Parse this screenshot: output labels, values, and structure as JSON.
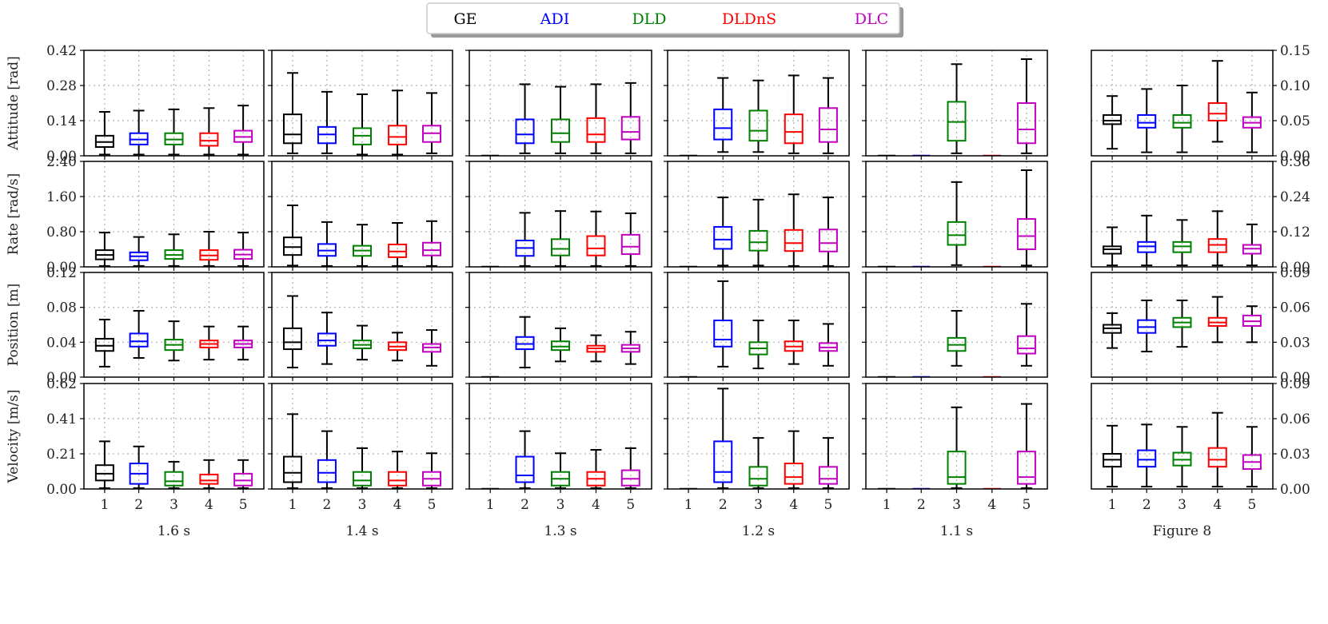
{
  "chart_data": {
    "type": "boxplot-grid",
    "legend": [
      {
        "label": "GE",
        "color": "#000000"
      },
      {
        "label": "ADI",
        "color": "#0000ff"
      },
      {
        "label": "DLD",
        "color": "#008000"
      },
      {
        "label": "DLDnS",
        "color": "#ff0000"
      },
      {
        "label": "DLC",
        "color": "#bf00bf"
      }
    ],
    "categories": [
      "1",
      "2",
      "3",
      "4",
      "5"
    ],
    "columns": [
      "1.6 s",
      "1.4 s",
      "1.3 s",
      "1.2 s",
      "1.1 s",
      "Figure 8"
    ],
    "rows": [
      {
        "ylabel": "Attitude [rad]",
        "left": {
          "ylim": [
            0,
            0.42
          ],
          "ticks": [
            "0.00",
            "0.14",
            "0.28",
            "0.42"
          ]
        },
        "right": {
          "ylim": [
            0,
            0.15
          ],
          "ticks": [
            "0.00",
            "0.05",
            "0.10",
            "0.15"
          ]
        }
      },
      {
        "ylabel": "Rate [rad/s]",
        "left": {
          "ylim": [
            0,
            2.4
          ],
          "ticks": [
            "0.00",
            "0.80",
            "1.60",
            "2.40"
          ]
        },
        "right": {
          "ylim": [
            0,
            0.36
          ],
          "ticks": [
            "0.00",
            "0.12",
            "0.24",
            "0.36"
          ]
        }
      },
      {
        "ylabel": "Position [m]",
        "left": {
          "ylim": [
            0,
            0.12
          ],
          "ticks": [
            "0.00",
            "0.04",
            "0.08",
            "0.12"
          ]
        },
        "right": {
          "ylim": [
            0,
            0.09
          ],
          "ticks": [
            "0.00",
            "0.03",
            "0.06",
            "0.09"
          ]
        }
      },
      {
        "ylabel": "Velocity [m/s]",
        "left": {
          "ylim": [
            0,
            0.62
          ],
          "ticks": [
            "0.00",
            "0.21",
            "0.41",
            "0.62"
          ]
        },
        "right": {
          "ylim": [
            0,
            0.09
          ],
          "ticks": [
            "0.00",
            "0.03",
            "0.06",
            "0.09"
          ]
        }
      }
    ],
    "boxes": [
      [
        [
          [
            0.005,
            0.035,
            0.055,
            0.08,
            0.175
          ],
          [
            0.005,
            0.045,
            0.065,
            0.09,
            0.18
          ],
          [
            0.005,
            0.045,
            0.065,
            0.09,
            0.185
          ],
          [
            0.005,
            0.04,
            0.06,
            0.09,
            0.19
          ],
          [
            0.005,
            0.055,
            0.075,
            0.1,
            0.2
          ]
        ],
        [
          [
            0.01,
            0.05,
            0.085,
            0.165,
            0.33
          ],
          [
            0.01,
            0.05,
            0.085,
            0.115,
            0.255
          ],
          [
            0.005,
            0.045,
            0.08,
            0.11,
            0.245
          ],
          [
            0.005,
            0.045,
            0.075,
            0.12,
            0.26
          ],
          [
            0.01,
            0.055,
            0.09,
            0.12,
            0.25
          ]
        ],
        [
          null,
          [
            0.01,
            0.05,
            0.085,
            0.145,
            0.285
          ],
          [
            0.01,
            0.055,
            0.09,
            0.145,
            0.275
          ],
          [
            0.01,
            0.055,
            0.085,
            0.15,
            0.285
          ],
          [
            0.01,
            0.065,
            0.095,
            0.155,
            0.29
          ]
        ],
        [
          null,
          [
            0.015,
            0.065,
            0.11,
            0.185,
            0.31
          ],
          [
            0.015,
            0.06,
            0.1,
            0.18,
            0.3
          ],
          [
            0.01,
            0.05,
            0.095,
            0.165,
            0.32
          ],
          [
            0.01,
            0.055,
            0.105,
            0.19,
            0.31
          ]
        ],
        [
          null,
          null,
          [
            0.01,
            0.06,
            0.135,
            0.215,
            0.365
          ],
          null,
          [
            0.01,
            0.05,
            0.105,
            0.21,
            0.385
          ]
        ],
        [
          [
            0.01,
            0.045,
            0.05,
            0.058,
            0.085
          ],
          [
            0.005,
            0.04,
            0.047,
            0.058,
            0.095
          ],
          [
            0.005,
            0.04,
            0.047,
            0.058,
            0.1
          ],
          [
            0.02,
            0.05,
            0.06,
            0.075,
            0.135
          ],
          [
            0.005,
            0.04,
            0.047,
            0.055,
            0.09
          ]
        ]
      ],
      [
        [
          [
            0.02,
            0.17,
            0.27,
            0.38,
            0.78
          ],
          [
            0.02,
            0.15,
            0.24,
            0.33,
            0.68
          ],
          [
            0.02,
            0.18,
            0.27,
            0.38,
            0.74
          ],
          [
            0.02,
            0.16,
            0.26,
            0.38,
            0.8
          ],
          [
            0.02,
            0.18,
            0.28,
            0.39,
            0.78
          ]
        ],
        [
          [
            0.03,
            0.27,
            0.45,
            0.67,
            1.4
          ],
          [
            0.02,
            0.25,
            0.37,
            0.52,
            1.02
          ],
          [
            0.02,
            0.25,
            0.37,
            0.48,
            0.96
          ],
          [
            0.02,
            0.22,
            0.35,
            0.51,
            1.0
          ],
          [
            0.02,
            0.26,
            0.38,
            0.55,
            1.04
          ]
        ],
        [
          null,
          [
            0.02,
            0.25,
            0.43,
            0.6,
            1.23
          ],
          [
            0.02,
            0.26,
            0.41,
            0.63,
            1.27
          ],
          [
            0.02,
            0.26,
            0.42,
            0.7,
            1.26
          ],
          [
            0.02,
            0.29,
            0.46,
            0.73,
            1.22
          ]
        ],
        [
          null,
          [
            0.03,
            0.41,
            0.62,
            0.91,
            1.58
          ],
          [
            0.03,
            0.37,
            0.56,
            0.82,
            1.53
          ],
          [
            0.02,
            0.36,
            0.54,
            0.84,
            1.65
          ],
          [
            0.02,
            0.35,
            0.54,
            0.85,
            1.58
          ]
        ],
        [
          null,
          null,
          [
            0.04,
            0.5,
            0.72,
            1.02,
            1.93
          ],
          null,
          [
            0.03,
            0.4,
            0.7,
            1.09,
            2.2
          ]
        ],
        [
          [
            0.005,
            0.045,
            0.06,
            0.07,
            0.135
          ],
          [
            0.005,
            0.05,
            0.07,
            0.085,
            0.175
          ],
          [
            0.005,
            0.05,
            0.07,
            0.085,
            0.16
          ],
          [
            0.005,
            0.05,
            0.075,
            0.095,
            0.19
          ],
          [
            0.005,
            0.045,
            0.062,
            0.075,
            0.145
          ]
        ]
      ],
      [
        [
          [
            0.012,
            0.03,
            0.036,
            0.044,
            0.066
          ],
          [
            0.022,
            0.035,
            0.041,
            0.05,
            0.076
          ],
          [
            0.019,
            0.031,
            0.037,
            0.043,
            0.064
          ],
          [
            0.02,
            0.034,
            0.038,
            0.042,
            0.058
          ],
          [
            0.02,
            0.034,
            0.038,
            0.042,
            0.058
          ]
        ],
        [
          [
            0.011,
            0.032,
            0.04,
            0.056,
            0.093
          ],
          [
            0.015,
            0.036,
            0.042,
            0.05,
            0.074
          ],
          [
            0.02,
            0.033,
            0.037,
            0.042,
            0.059
          ],
          [
            0.019,
            0.031,
            0.035,
            0.04,
            0.051
          ],
          [
            0.013,
            0.029,
            0.034,
            0.038,
            0.054
          ]
        ],
        [
          null,
          [
            0.011,
            0.032,
            0.038,
            0.046,
            0.069
          ],
          [
            0.018,
            0.031,
            0.035,
            0.041,
            0.056
          ],
          [
            0.018,
            0.029,
            0.033,
            0.036,
            0.048
          ],
          [
            0.015,
            0.029,
            0.033,
            0.037,
            0.052
          ]
        ],
        [
          null,
          [
            0.012,
            0.035,
            0.043,
            0.065,
            0.11
          ],
          [
            0.01,
            0.026,
            0.033,
            0.04,
            0.065
          ],
          [
            0.015,
            0.03,
            0.035,
            0.041,
            0.065
          ],
          [
            0.013,
            0.03,
            0.034,
            0.039,
            0.061
          ]
        ],
        [
          null,
          null,
          [
            0.013,
            0.03,
            0.037,
            0.045,
            0.076
          ],
          null,
          [
            0.013,
            0.027,
            0.033,
            0.047,
            0.084
          ]
        ],
        [
          [
            0.025,
            0.038,
            0.042,
            0.045,
            0.055
          ],
          [
            0.022,
            0.038,
            0.043,
            0.049,
            0.066
          ],
          [
            0.026,
            0.043,
            0.047,
            0.051,
            0.066
          ],
          [
            0.03,
            0.044,
            0.047,
            0.051,
            0.069
          ],
          [
            0.03,
            0.044,
            0.048,
            0.053,
            0.061
          ]
        ]
      ],
      [
        [
          [
            0.005,
            0.05,
            0.09,
            0.14,
            0.28
          ],
          [
            0.005,
            0.03,
            0.09,
            0.15,
            0.25
          ],
          [
            0.005,
            0.02,
            0.045,
            0.1,
            0.16
          ],
          [
            0.005,
            0.03,
            0.05,
            0.085,
            0.17
          ],
          [
            0.005,
            0.02,
            0.05,
            0.09,
            0.17
          ]
        ],
        [
          [
            0.005,
            0.04,
            0.095,
            0.19,
            0.44
          ],
          [
            0.005,
            0.04,
            0.095,
            0.17,
            0.34
          ],
          [
            0.005,
            0.02,
            0.05,
            0.1,
            0.24
          ],
          [
            0.005,
            0.02,
            0.05,
            0.1,
            0.22
          ],
          [
            0.005,
            0.02,
            0.06,
            0.1,
            0.21
          ]
        ],
        [
          null,
          [
            0.005,
            0.04,
            0.08,
            0.19,
            0.34
          ],
          [
            0.005,
            0.02,
            0.06,
            0.1,
            0.21
          ],
          [
            0.005,
            0.02,
            0.06,
            0.1,
            0.23
          ],
          [
            0.005,
            0.02,
            0.06,
            0.11,
            0.24
          ]
        ],
        [
          null,
          [
            0.005,
            0.04,
            0.1,
            0.28,
            0.59
          ],
          [
            0.005,
            0.02,
            0.06,
            0.13,
            0.3
          ],
          [
            0.005,
            0.03,
            0.07,
            0.15,
            0.34
          ],
          [
            0.005,
            0.03,
            0.06,
            0.13,
            0.3
          ]
        ],
        [
          null,
          null,
          [
            0.005,
            0.03,
            0.07,
            0.22,
            0.48
          ],
          null,
          [
            0.005,
            0.03,
            0.07,
            0.22,
            0.5
          ]
        ],
        [
          [
            0.002,
            0.019,
            0.025,
            0.03,
            0.054
          ],
          [
            0.002,
            0.019,
            0.025,
            0.033,
            0.055
          ],
          [
            0.002,
            0.02,
            0.025,
            0.031,
            0.053
          ],
          [
            0.002,
            0.019,
            0.025,
            0.035,
            0.065
          ],
          [
            0.002,
            0.017,
            0.023,
            0.029,
            0.053
          ]
        ]
      ]
    ],
    "flat_markers": "Empty slots in the 1.3 s / 1.2 s / 1.1 s columns are drawn as flat dashes at 0 (failed runs)."
  }
}
